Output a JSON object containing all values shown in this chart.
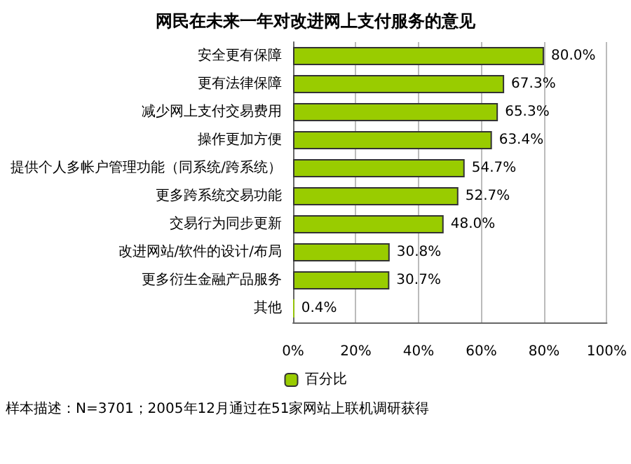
{
  "chart_data": {
    "type": "bar",
    "orientation": "horizontal",
    "title": "网民在未来一年对改进网上支付服务的意见",
    "categories": [
      "安全更有保障",
      "更有法律保障",
      "减少网上支付交易费用",
      "操作更加方便",
      "提供个人多帐户管理功能（同系统/跨系统）",
      "更多跨系统交易功能",
      "交易行为同步更新",
      "改进网站/软件的设计/布局",
      "更多衍生金融产品服务",
      "其他"
    ],
    "series": [
      {
        "name": "百分比",
        "color": "#99cc00",
        "values": [
          80.0,
          67.3,
          65.3,
          63.4,
          54.7,
          52.7,
          48.0,
          30.8,
          30.7,
          0.4
        ],
        "value_labels": [
          "80.0%",
          "67.3%",
          "65.3%",
          "63.4%",
          "54.7%",
          "52.7%",
          "48.0%",
          "30.8%",
          "30.7%",
          "0.4%"
        ]
      }
    ],
    "xlim": [
      0,
      100
    ],
    "xticks": [
      {
        "value": 0,
        "label": "0%"
      },
      {
        "value": 20,
        "label": "20%"
      },
      {
        "value": 40,
        "label": "40%"
      },
      {
        "value": 60,
        "label": "60%"
      },
      {
        "value": 80,
        "label": "80%"
      },
      {
        "value": 100,
        "label": "100%"
      }
    ],
    "grid": "x",
    "legend": "bottom",
    "annotations": [
      "样本描述：N=3701；2005年12月通过在51家网站上联机调研获得"
    ]
  }
}
